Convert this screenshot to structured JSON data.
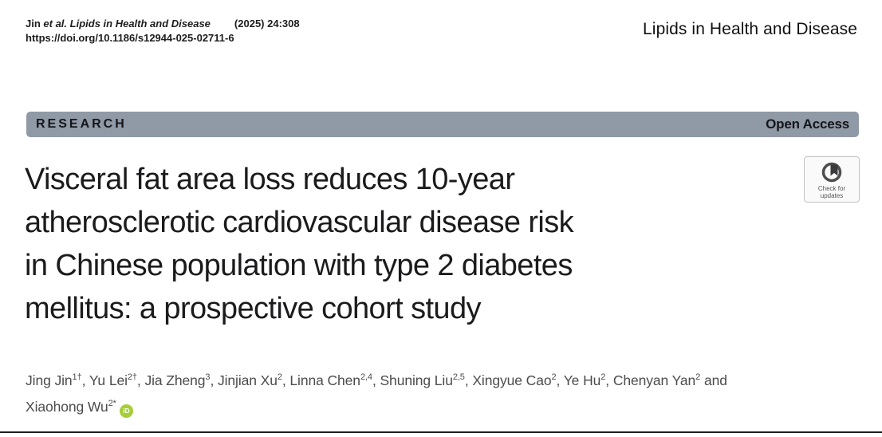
{
  "header": {
    "citation": {
      "pre": "Jin ",
      "italic": "et al. Lipids in Health and Disease",
      "ref": "(2025) 24:308",
      "doi": "https://doi.org/10.1186/s12944-025-02711-6"
    },
    "journal_name": "Lipids in Health and Disease"
  },
  "banner": {
    "label": "RESEARCH",
    "right_label": "Open Access",
    "bg_color": "#9099a6"
  },
  "check_badge": {
    "line1": "Check for",
    "line2": "updates",
    "icon": "crossmark-icon"
  },
  "title": {
    "lines": [
      "Visceral fat area loss reduces 10-year",
      "atherosclerotic cardiovascular disease risk",
      "in Chinese population with type 2 diabetes",
      "mellitus: a prospective cohort study"
    ]
  },
  "authors": {
    "line1": [
      {
        "name": "Jing Jin",
        "sup": "1†",
        "sep": ", "
      },
      {
        "name": "Yu Lei",
        "sup": "2†",
        "sep": ", "
      },
      {
        "name": "Jia Zheng",
        "sup": "3",
        "sep": ", "
      },
      {
        "name": "Jinjian Xu",
        "sup": "2",
        "sep": ", "
      },
      {
        "name": "Linna Chen",
        "sup": "2,4",
        "sep": ", "
      },
      {
        "name": "Shuning Liu",
        "sup": "2,5",
        "sep": ", "
      },
      {
        "name": "Xingyue Cao",
        "sup": "2",
        "sep": ", "
      },
      {
        "name": "Ye Hu",
        "sup": "2",
        "sep": ", "
      },
      {
        "name": "Chenyan Yan",
        "sup": "2",
        "sep": " and"
      }
    ],
    "line2": [
      {
        "name": "Xiaohong Wu",
        "sup": "2*",
        "sep": ""
      }
    ],
    "orcid_label": "iD",
    "orcid_color": "#a6ce39"
  }
}
